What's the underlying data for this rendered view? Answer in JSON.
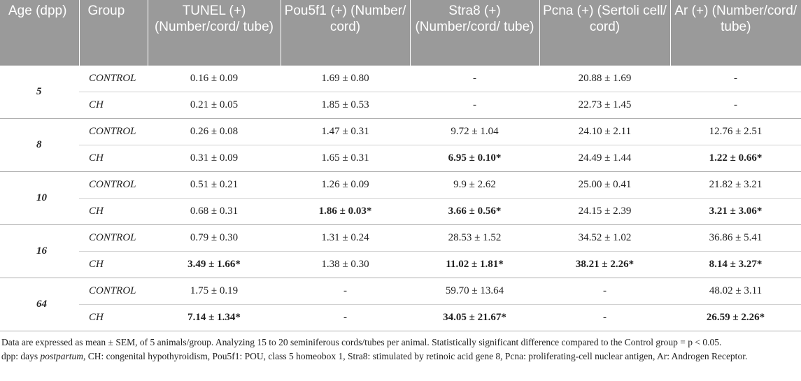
{
  "headers": [
    "Age (dpp)",
    "Group",
    "TUNEL (+) (Number/cord/ tube)",
    "Pou5f1 (+) (Number/ cord)",
    "Stra8 (+) (Number/cord/ tube)",
    "Pcna (+) (Sertoli cell/ cord)",
    "Ar (+) (Number/cord/ tube)"
  ],
  "rows": [
    {
      "age": "5",
      "control": [
        "0.16 ± 0.09",
        "1.69 ± 0.80",
        "-",
        "20.88 ± 1.69",
        "-"
      ],
      "ch": [
        "0.21 ± 0.05",
        "1.85 ± 0.53",
        "-",
        "22.73 ± 1.45",
        "-"
      ]
    },
    {
      "age": "8",
      "control": [
        "0.26 ± 0.08",
        "1.47 ± 0.31",
        "9.72 ± 1.04",
        "24.10 ± 2.11",
        "12.76 ± 2.51"
      ],
      "ch": [
        "0.31 ± 0.09",
        "1.65 ± 0.31",
        "6.95 ± 0.10*",
        "24.49 ± 1.44",
        "1.22 ± 0.66*"
      ]
    },
    {
      "age": "10",
      "control": [
        "0.51 ± 0.21",
        "1.26 ± 0.09",
        "9.9 ± 2.62",
        "25.00 ± 0.41",
        "21.82 ± 3.21"
      ],
      "ch": [
        "0.68 ± 0.31",
        "1.86 ± 0.03*",
        "3.66 ± 0.56*",
        "24.15 ± 2.39",
        "3.21 ± 3.06*"
      ]
    },
    {
      "age": "16",
      "control": [
        "0.79 ± 0.30",
        "1.31 ± 0.24",
        "28.53 ± 1.52",
        "34.52 ± 1.02",
        "36.86 ± 5.41"
      ],
      "ch": [
        "3.49 ± 1.66*",
        "1.38 ± 0.30",
        "11.02 ± 1.81*",
        "38.21 ± 2.26*",
        "8.14 ± 3.27*"
      ]
    },
    {
      "age": "64",
      "control": [
        "1.75 ± 0.19",
        "-",
        "59.70 ± 13.64",
        "-",
        "48.02 ± 3.11"
      ],
      "ch": [
        "7.14 ± 1.34*",
        "-",
        "34.05 ± 21.67*",
        "-",
        "26.59 ± 2.26*"
      ]
    }
  ],
  "group_control": "CONTROL",
  "group_ch": "CH",
  "notes": {
    "line1": "Data are expressed as mean ± SEM, of 5 animals/group. Analyzing 15 to 20 seminiferous cords/tubes per animal. Statistically significant difference compared to the Control group = p < 0.05.",
    "line2_a": "dpp: days ",
    "line2_b": "postpartum",
    "line2_c": ", CH: congenital hypothyroidism, Pou5f1: POU, class 5 homeobox 1, Stra8: stimulated by retinoic acid gene 8, Pcna: proliferating-cell nuclear antigen, Ar: Androgen Receptor."
  }
}
